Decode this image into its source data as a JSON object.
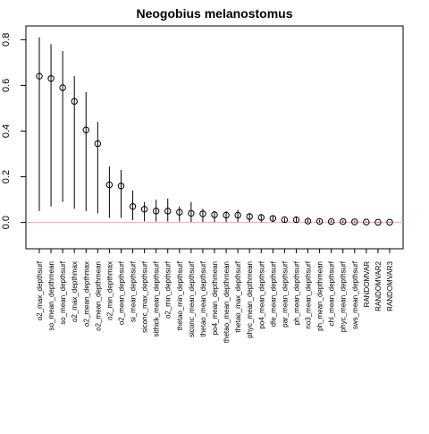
{
  "chart_data": {
    "type": "scatter",
    "title": "Neogobius melanostomus",
    "xlabel": "",
    "ylabel": "",
    "ylim": [
      -0.115,
      0.86
    ],
    "yticks": [
      0.0,
      0.2,
      0.4,
      0.6,
      0.8
    ],
    "grid": false,
    "reference_line": {
      "y": 0.0,
      "color": "#f4a6b0"
    },
    "point_color": "#000000",
    "categories": [
      "o2_max_depthsurf",
      "so_mean_depthmean",
      "so_mean_depthsurf",
      "o2_max_depthmax",
      "o2_mean_depthmax",
      "o2_mean_depthmean",
      "o2_min_depthmax",
      "o2_mean_depthsurf",
      "si_mean_depthsurf",
      "siconc_max_depthsurf",
      "sithick_mean_depthsurf",
      "o2_min_depthsurf",
      "thetao_min_depthsurf",
      "siconc_mean_depthsurf",
      "thetao_mean_depthsurf",
      "po4_mean_depthmean",
      "thetao_mean_depthmean",
      "thetao_max_depthsurf",
      "phyc_mean_depthmean",
      "po4_mean_depthsurf",
      "dfe_mean_depthsurf",
      "par_mean_depthsurf",
      "ph_mean_depthsurf",
      "no3_mean_depthsurf",
      "ph_mean_depthmean",
      "chl_mean_depthsurf",
      "phyc_mean_depthsurf",
      "sws_mean_depthsurf",
      "RANDOMVAR",
      "RANDOMVAR2",
      "RANDOMVAR3"
    ],
    "values": [
      0.64,
      0.63,
      0.59,
      0.53,
      0.405,
      0.345,
      0.165,
      0.16,
      0.07,
      0.058,
      0.05,
      0.05,
      0.045,
      0.04,
      0.038,
      0.034,
      0.032,
      0.032,
      0.026,
      0.022,
      0.018,
      0.012,
      0.012,
      0.006,
      0.005,
      0.004,
      0.004,
      0.003,
      0.002,
      0.001,
      0.001
    ],
    "lower": [
      0.05,
      0.07,
      0.09,
      0.06,
      0.05,
      0.04,
      0.02,
      0.02,
      0.01,
      0.005,
      0.004,
      0.004,
      0.004,
      0.002,
      0.002,
      0.002,
      0.002,
      0.002,
      0.002,
      0.001,
      0.001,
      0.001,
      0.001,
      0.0,
      0.0,
      0.0,
      0.0,
      0.0,
      0.0,
      0.0,
      0.0
    ],
    "upper": [
      0.81,
      0.78,
      0.75,
      0.64,
      0.57,
      0.44,
      0.245,
      0.23,
      0.14,
      0.09,
      0.1,
      0.105,
      0.07,
      0.09,
      0.06,
      0.05,
      0.05,
      0.055,
      0.04,
      0.035,
      0.03,
      0.02,
      0.025,
      0.015,
      0.012,
      0.01,
      0.01,
      0.008,
      0.005,
      0.003,
      0.003
    ]
  }
}
